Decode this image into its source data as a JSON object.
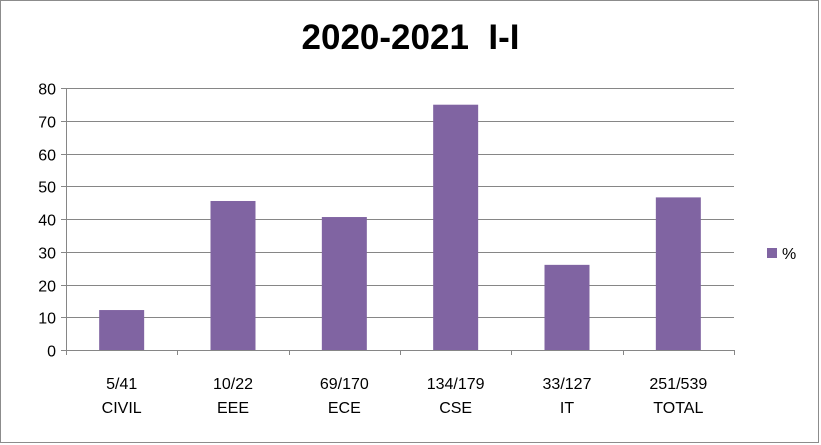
{
  "chart_data": {
    "type": "bar",
    "title": "2020-2021  I-I",
    "xlabel": "",
    "ylabel": "",
    "categories": [
      [
        "5/41",
        "CIVIL"
      ],
      [
        "10/22",
        "EEE"
      ],
      [
        "69/170",
        "ECE"
      ],
      [
        "134/179",
        "CSE"
      ],
      [
        "33/127",
        "IT"
      ],
      [
        "251/539",
        "TOTAL"
      ]
    ],
    "series": [
      {
        "name": "%",
        "values": [
          12.2,
          45.5,
          40.6,
          74.9,
          26.0,
          46.6
        ]
      }
    ],
    "ylim": [
      0,
      80
    ],
    "yticks": [
      0,
      10,
      20,
      30,
      40,
      50,
      60,
      70,
      80
    ],
    "grid": true,
    "legend": "right",
    "colors": {
      "bar": "#8064a2",
      "grid": "#868686",
      "axis": "#868686"
    }
  }
}
